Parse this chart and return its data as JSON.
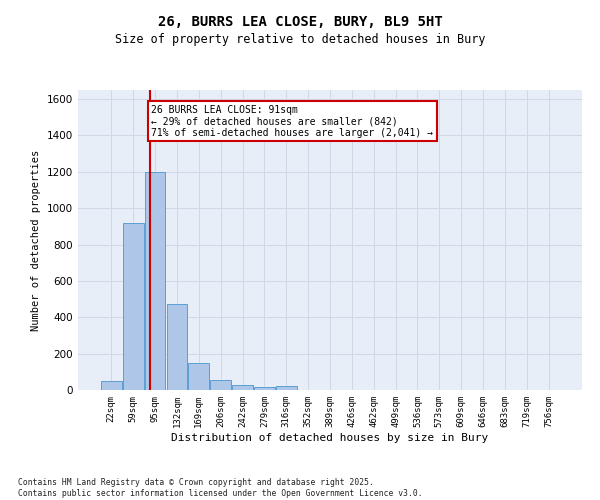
{
  "title_line1": "26, BURRS LEA CLOSE, BURY, BL9 5HT",
  "title_line2": "Size of property relative to detached houses in Bury",
  "xlabel": "Distribution of detached houses by size in Bury",
  "ylabel": "Number of detached properties",
  "categories": [
    "22sqm",
    "59sqm",
    "95sqm",
    "132sqm",
    "169sqm",
    "206sqm",
    "242sqm",
    "279sqm",
    "316sqm",
    "352sqm",
    "389sqm",
    "426sqm",
    "462sqm",
    "499sqm",
    "536sqm",
    "573sqm",
    "609sqm",
    "646sqm",
    "683sqm",
    "719sqm",
    "756sqm"
  ],
  "values": [
    50,
    920,
    1200,
    475,
    150,
    55,
    30,
    15,
    20,
    0,
    0,
    0,
    0,
    0,
    0,
    0,
    0,
    0,
    0,
    0,
    0
  ],
  "bar_color": "#aec6e8",
  "bar_edge_color": "#5a9fd4",
  "grid_color": "#d0d8e8",
  "background_color": "#e8eef8",
  "annotation_box_text": "26 BURRS LEA CLOSE: 91sqm\n← 29% of detached houses are smaller (842)\n71% of semi-detached houses are larger (2,041) →",
  "annotation_box_color": "#cc0000",
  "vline_x_index": 1.78,
  "vline_color": "#cc0000",
  "ylim": [
    0,
    1650
  ],
  "yticks": [
    0,
    200,
    400,
    600,
    800,
    1000,
    1200,
    1400,
    1600
  ],
  "footnote": "Contains HM Land Registry data © Crown copyright and database right 2025.\nContains public sector information licensed under the Open Government Licence v3.0."
}
